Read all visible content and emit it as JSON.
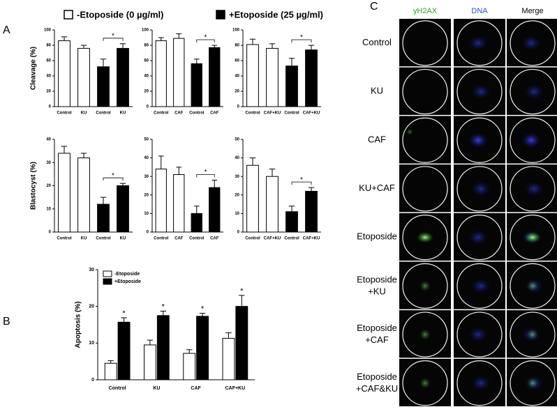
{
  "panel_labels": [
    "A",
    "B",
    "C"
  ],
  "legend": [
    {
      "name": "-Etoposide (0 µg/ml)",
      "color": "#ffffff"
    },
    {
      "name": "+Etoposide (25 µg/ml)",
      "color": "#000000"
    }
  ],
  "chart_data": [
    {
      "type": "bar",
      "ylabel": "Cleavage (%)",
      "categories": [
        "Control",
        "KU",
        "Control",
        "KU"
      ],
      "values": [
        86,
        76,
        52,
        76
      ],
      "errors": [
        5,
        4,
        10,
        6
      ],
      "colors": [
        "#ffffff",
        "#ffffff",
        "#000000",
        "#000000"
      ],
      "ylim": [
        0,
        100
      ],
      "yticks": [
        0,
        20,
        40,
        60,
        80,
        100
      ],
      "significance": "*"
    },
    {
      "type": "bar",
      "categories": [
        "Control",
        "CAF",
        "Control",
        "CAF"
      ],
      "values": [
        86,
        89,
        56,
        77
      ],
      "errors": [
        4,
        6,
        6,
        3
      ],
      "colors": [
        "#ffffff",
        "#ffffff",
        "#000000",
        "#000000"
      ],
      "ylim": [
        0,
        100
      ],
      "yticks": [
        0,
        20,
        40,
        60,
        80,
        100
      ],
      "significance": "*"
    },
    {
      "type": "bar",
      "categories": [
        "Control",
        "CAF+KU",
        "Control",
        "CAF+KU"
      ],
      "values": [
        81,
        76,
        53,
        74
      ],
      "errors": [
        7,
        6,
        10,
        6
      ],
      "colors": [
        "#ffffff",
        "#ffffff",
        "#000000",
        "#000000"
      ],
      "ylim": [
        0,
        100
      ],
      "yticks": [
        0,
        20,
        40,
        60,
        80,
        100
      ],
      "significance": "*"
    },
    {
      "type": "bar",
      "ylabel": "Blastocyst (%)",
      "categories": [
        "Control",
        "KU",
        "Control",
        "KU"
      ],
      "values": [
        34,
        32,
        12,
        20
      ],
      "errors": [
        3,
        2,
        3,
        1
      ],
      "colors": [
        "#ffffff",
        "#ffffff",
        "#000000",
        "#000000"
      ],
      "ylim": [
        0,
        40
      ],
      "yticks": [
        0,
        10,
        20,
        30,
        40
      ],
      "significance": "*"
    },
    {
      "type": "bar",
      "categories": [
        "Control",
        "CAF",
        "Control",
        "CAF"
      ],
      "values": [
        34,
        31,
        10,
        24
      ],
      "errors": [
        7,
        4,
        4,
        4
      ],
      "colors": [
        "#ffffff",
        "#ffffff",
        "#000000",
        "#000000"
      ],
      "ylim": [
        0,
        50
      ],
      "yticks": [
        0,
        10,
        20,
        30,
        40,
        50
      ],
      "significance": "*"
    },
    {
      "type": "bar",
      "categories": [
        "Control",
        "CAF+KU",
        "Control",
        "CAF+KU"
      ],
      "values": [
        36,
        30,
        11,
        22
      ],
      "errors": [
        4,
        4,
        3,
        2
      ],
      "colors": [
        "#ffffff",
        "#ffffff",
        "#000000",
        "#000000"
      ],
      "ylim": [
        0,
        50
      ],
      "yticks": [
        0,
        10,
        20,
        30,
        40,
        50
      ],
      "significance": "*"
    },
    {
      "type": "grouped_bar",
      "ylabel": "Apoptosis (%)",
      "categories": [
        "Control",
        "KU",
        "CAF",
        "CAF+KU"
      ],
      "series": [
        {
          "name": "-Etoposide",
          "color": "#ffffff",
          "values": [
            4.5,
            9.5,
            7.2,
            11.3
          ],
          "errors": [
            0.7,
            1.3,
            1.0,
            1.5
          ]
        },
        {
          "name": "+Etoposide",
          "color": "#000000",
          "values": [
            15.7,
            17.5,
            17.3,
            20.0
          ],
          "errors": [
            1.2,
            1.2,
            0.8,
            3.0
          ]
        }
      ],
      "ylim": [
        0,
        30
      ],
      "yticks": [
        0,
        10,
        20,
        30
      ],
      "significance": "*"
    }
  ],
  "panel_c": {
    "columns": [
      "γH2AX",
      "DNA",
      "Merge"
    ],
    "rows": [
      [
        "Control"
      ],
      [
        "KU"
      ],
      [
        "CAF"
      ],
      [
        "KU+CAF"
      ],
      [
        "Etoposide"
      ],
      [
        "Etoposide",
        "+KU"
      ],
      [
        "Etoposide",
        "+CAF"
      ],
      [
        "Etoposide",
        "+CAF&KU"
      ]
    ]
  }
}
